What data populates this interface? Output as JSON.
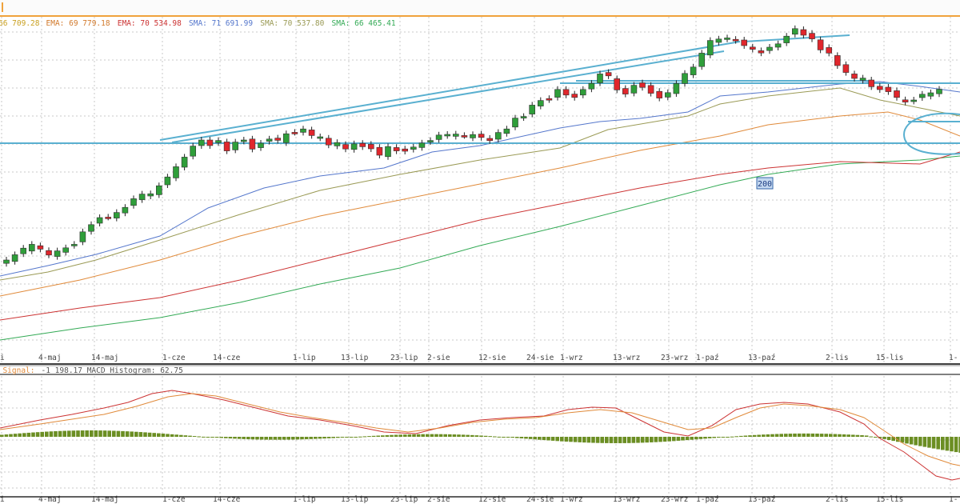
{
  "chart_data": {
    "type": "candlestick",
    "legend_main": [
      {
        "text": "66 709.28",
        "color": "#c9a020"
      },
      {
        "text": "EMA: 69 779.18",
        "color": "#d27a2c"
      },
      {
        "text": "EMA: 70 534.98",
        "color": "#cc3333"
      },
      {
        "text": "SMA: 71 691.99",
        "color": "#5577cc"
      },
      {
        "text": "SMA: 70 537.80",
        "color": "#9a9a55"
      },
      {
        "text": "SMA: 66 465.41",
        "color": "#33aa55"
      }
    ],
    "legend_macd": [
      {
        "text": "D Signal: ",
        "color": "#e08a3a"
      },
      {
        "text": "-1 198.17 MACD Histogram: 62.75",
        "color": "#555555"
      }
    ],
    "x_ticks": [
      "i",
      "4-maj",
      "14-maj",
      "1-cze",
      "14-cze",
      "1-lip",
      "13-lip",
      "23-lip",
      "2-sie",
      "12-sie",
      "24-sie",
      "1-wrz",
      "13-wrz",
      "23-wrz",
      "1-paź",
      "13-paź",
      "2-lis",
      "15-lis",
      "1-"
    ],
    "annotation": "200",
    "colors": {
      "up": "#2f9e3a",
      "down": "#e0262c",
      "trendline": "#5ab0d0",
      "macd": "#cc3333",
      "signal": "#e08a3a",
      "hist": "#6b8e23",
      "grid": "#c8c8c8"
    },
    "candles": [
      [
        3,
        2
      ],
      [
        6,
        3
      ],
      [
        5,
        -2
      ],
      [
        6,
        6
      ],
      [
        -3,
        3
      ],
      [
        -4,
        3
      ],
      [
        5,
        3
      ],
      [
        4,
        3
      ],
      [
        1,
        -5
      ],
      [
        9,
        -5
      ],
      [
        6,
        -1
      ],
      [
        5,
        -3
      ],
      [
        0,
        -1
      ],
      [
        5,
        2
      ],
      [
        5,
        1
      ],
      [
        6,
        -4
      ],
      [
        5,
        2
      ],
      [
        2,
        4
      ],
      [
        8,
        2
      ],
      [
        7,
        -2
      ],
      [
        10,
        2
      ],
      [
        9,
        1
      ],
      [
        9,
        -2
      ],
      [
        5,
        -1
      ],
      [
        -5,
        0
      ],
      [
        2,
        -6
      ],
      [
        -8,
        3
      ],
      [
        7,
        -2
      ],
      [
        1,
        -2
      ],
      [
        -9,
        -2
      ],
      [
        4,
        -3
      ],
      [
        2,
        -4
      ],
      [
        -2,
        -2
      ],
      [
        8,
        5
      ],
      [
        0,
        -3
      ],
      [
        3,
        0
      ],
      [
        -5,
        2
      ],
      [
        1,
        5
      ],
      [
        -6,
        3
      ],
      [
        3,
        2
      ],
      [
        -4,
        4
      ],
      [
        5,
        1
      ],
      [
        -3,
        -1
      ],
      [
        -4,
        -5
      ],
      [
        -7,
        -3
      ],
      [
        9,
        3
      ],
      [
        -3,
        2
      ],
      [
        -2,
        -4
      ],
      [
        2,
        -4
      ],
      [
        4,
        1
      ],
      [
        1,
        -3
      ],
      [
        4,
        -2
      ],
      [
        1,
        1
      ],
      [
        2,
        4
      ],
      [
        0,
        3
      ],
      [
        3,
        5
      ],
      [
        -3,
        -1
      ],
      [
        -2,
        2
      ],
      [
        6,
        -3
      ],
      [
        4,
        2
      ],
      [
        8,
        -4
      ],
      [
        1,
        -1
      ],
      [
        8,
        -5
      ],
      [
        5,
        2
      ],
      [
        -1,
        -4
      ],
      [
        7,
        -5
      ],
      [
        -5,
        0
      ],
      [
        -3,
        -2
      ],
      [
        5,
        -5
      ],
      [
        5,
        -1
      ],
      [
        8,
        -1
      ],
      [
        -3,
        -3
      ],
      [
        -10,
        6
      ],
      [
        -5,
        -3
      ],
      [
        7,
        -2
      ],
      [
        -4,
        -5
      ],
      [
        -7,
        -4
      ],
      [
        -6,
        -4
      ],
      [
        4,
        -2
      ],
      [
        9,
        2
      ],
      [
        9,
        0
      ],
      [
        7,
        3
      ],
      [
        12,
        -1
      ],
      [
        13,
        4
      ],
      [
        3,
        4
      ],
      [
        1,
        0
      ],
      [
        -1,
        3
      ],
      [
        -5,
        -1
      ],
      [
        -2,
        3
      ],
      [
        -2,
        3
      ],
      [
        3,
        -5
      ],
      [
        3,
        0
      ],
      [
        6,
        -2
      ],
      [
        5,
        -4
      ],
      [
        -5,
        2
      ],
      [
        -5,
        -4
      ],
      [
        -9,
        2
      ],
      [
        -5,
        -5
      ],
      [
        -9,
        5
      ],
      [
        -7,
        -2
      ],
      [
        -4,
        3
      ],
      [
        2,
        4
      ],
      [
        -6,
        4
      ],
      [
        -3,
        -1
      ],
      [
        -4,
        -5
      ],
      [
        -6,
        -2
      ],
      [
        -2,
        5
      ],
      [
        1,
        -2
      ],
      [
        3,
        -5
      ],
      [
        3,
        4
      ],
      [
        4,
        2
      ]
    ]
  }
}
